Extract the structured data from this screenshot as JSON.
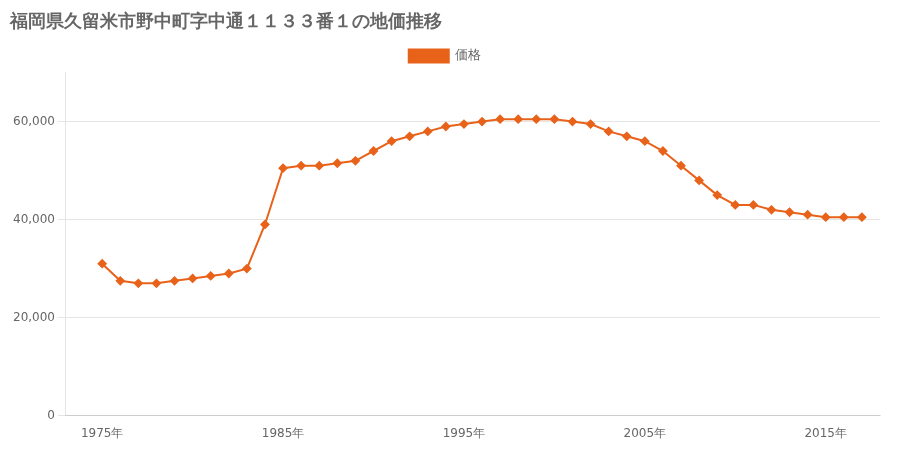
{
  "chart_data": {
    "type": "line",
    "title": "福岡県久留米市野中町字中通１１３３番１の地価推移",
    "x": [
      1975,
      1976,
      1977,
      1978,
      1979,
      1980,
      1981,
      1982,
      1983,
      1984,
      1985,
      1986,
      1987,
      1988,
      1989,
      1990,
      1991,
      1992,
      1993,
      1994,
      1995,
      1996,
      1997,
      1998,
      1999,
      2000,
      2001,
      2002,
      2003,
      2004,
      2005,
      2006,
      2007,
      2008,
      2009,
      2010,
      2011,
      2012,
      2013,
      2014,
      2015,
      2016,
      2017
    ],
    "series": [
      {
        "name": "価格",
        "color": "#E8621A",
        "marker": "diamond",
        "values": [
          31000,
          27500,
          27000,
          27000,
          27500,
          28000,
          28500,
          29000,
          30000,
          39000,
          50500,
          51000,
          51000,
          51500,
          52000,
          54000,
          56000,
          57000,
          58000,
          59000,
          59500,
          60000,
          60500,
          60500,
          60500,
          60500,
          60000,
          59500,
          58000,
          57000,
          56000,
          54000,
          51000,
          48000,
          45000,
          43000,
          43000,
          42000,
          41500,
          41000,
          40500,
          40500,
          40500
        ]
      }
    ],
    "xlim": [
      1973,
      2018
    ],
    "xticks": [
      {
        "value": 1975,
        "label": "1975年"
      },
      {
        "value": 1985,
        "label": "1985年"
      },
      {
        "value": 1995,
        "label": "1995年"
      },
      {
        "value": 2005,
        "label": "2005年"
      },
      {
        "value": 2015,
        "label": "2015年"
      }
    ],
    "ylim": [
      0,
      70000
    ],
    "yticks": [
      0,
      {
        "value": 20000,
        "label": "20,000"
      },
      {
        "value": 40000,
        "label": "40,000"
      },
      {
        "value": 60000,
        "label": "60,000"
      }
    ],
    "grid": "y",
    "legend": "top"
  }
}
